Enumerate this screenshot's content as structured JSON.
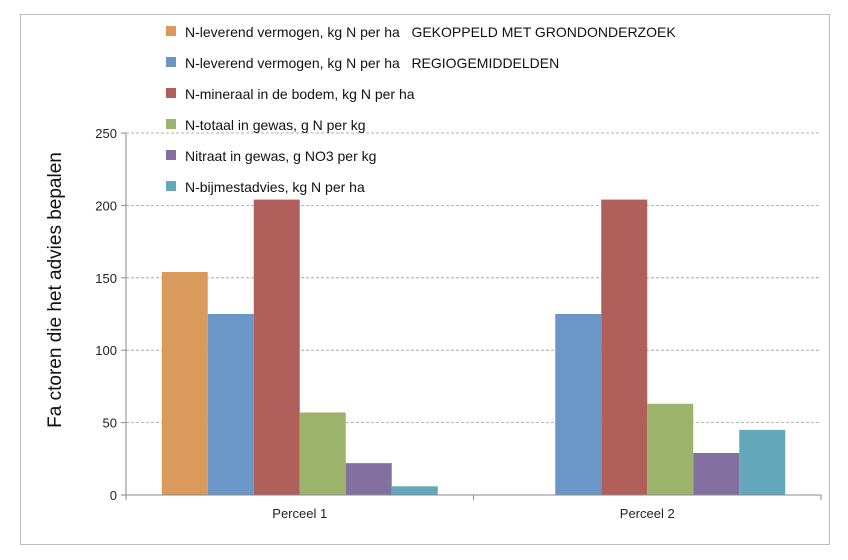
{
  "chart_data": {
    "type": "bar",
    "title": "",
    "xlabel": "",
    "ylabel": "Fa ctoren die het advies bepalen",
    "categories": [
      "Perceel 1",
      "Perceel 2"
    ],
    "ylim": [
      0,
      250
    ],
    "yticks": [
      0,
      50,
      100,
      150,
      200,
      250
    ],
    "grid": true,
    "legend_position": "top",
    "series": [
      {
        "name": "N-leverend vermogen, kg N per ha   GEKOPPELD MET GRONDONDERZOEK",
        "color": "#d99a5b",
        "values": [
          154,
          null
        ]
      },
      {
        "name": "N-leverend vermogen, kg N per ha   REGIOGEMIDDELDEN",
        "color": "#6a96c8",
        "values": [
          125,
          125
        ]
      },
      {
        "name": "N-mineraal in de bodem, kg N per ha",
        "color": "#b05f5a",
        "values": [
          204,
          204
        ]
      },
      {
        "name": "N-totaal in gewas, g N per kg",
        "color": "#9bb36a",
        "values": [
          57,
          63
        ]
      },
      {
        "name": "Nitraat in gewas, g NO3 per kg",
        "color": "#8470a0",
        "values": [
          22,
          29
        ]
      },
      {
        "name": "N-bijmestadvies, kg N per ha",
        "color": "#63a7ba",
        "values": [
          6,
          45
        ]
      }
    ]
  }
}
